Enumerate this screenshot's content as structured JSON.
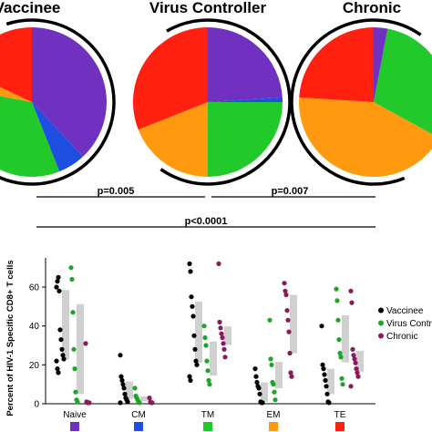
{
  "chart_data": [
    {
      "type": "pie",
      "panel": "pies",
      "titles": [
        "Vaccinee",
        "Virus Controller",
        "Chronic"
      ],
      "categories": [
        "Naive",
        "CM",
        "TM",
        "EM",
        "TE"
      ],
      "colors": [
        "#7030c0",
        "#1f4fe0",
        "#22c92a",
        "#ff9a10",
        "#ff2010"
      ],
      "series": [
        {
          "name": "Vaccinee",
          "values": [
            38,
            6,
            34,
            4,
            18
          ]
        },
        {
          "name": "Virus Controller",
          "values": [
            24,
            1,
            25,
            19,
            31
          ]
        },
        {
          "name": "Chronic",
          "values": [
            3,
            0,
            30,
            43,
            24
          ]
        }
      ],
      "comparisons": [
        {
          "label": "p=0.005",
          "between": [
            "Vaccinee",
            "Virus Controller"
          ]
        },
        {
          "label": "p=0.007",
          "between": [
            "Virus Controller",
            "Chronic"
          ]
        },
        {
          "label": "p<0.0001",
          "between": [
            "Vaccinee",
            "Chronic"
          ]
        }
      ]
    },
    {
      "type": "scatter",
      "panel": "dots",
      "ylabel": "Percent of HIV-1 Specific CD8+ T cells",
      "xlabel": "",
      "ylim": [
        0,
        75
      ],
      "yticks": [
        0,
        20,
        40,
        60
      ],
      "categories": [
        "Naive",
        "CM",
        "TM",
        "EM",
        "TE"
      ],
      "category_colors": [
        "#7030c0",
        "#1f4fe0",
        "#22c92a",
        "#ff9a10",
        "#ff2010"
      ],
      "series": [
        {
          "name": "Vaccinee",
          "color": "#000000",
          "points": [
            [
              60,
              63,
              65,
              58,
              38,
              33,
              28,
              25,
              23,
              22,
              18,
              16
            ],
            [
              25,
              14,
              12,
              10,
              8,
              5,
              3,
              2,
              1,
              0.5
            ],
            [
              72,
              68,
              55,
              50,
              45,
              35,
              28,
              22,
              20,
              14,
              12
            ],
            [
              18,
              14,
              11,
              9,
              8,
              5,
              1,
              0.5,
              0.5
            ],
            [
              40,
              20,
              18,
              15,
              12,
              9,
              5,
              1,
              0.5
            ]
          ]
        },
        {
          "name": "Virus Controller",
          "color": "#1aa62a",
          "points": [
            [
              70,
              64,
              47,
              28,
              18,
              6,
              2,
              1
            ],
            [
              8,
              4,
              3,
              2,
              1,
              0.5
            ],
            [
              40,
              34,
              30,
              22,
              17,
              12,
              10
            ],
            [
              43,
              23,
              20,
              11,
              10,
              6,
              2
            ],
            [
              59,
              53,
              43,
              33,
              26,
              24,
              13,
              10
            ]
          ]
        },
        {
          "name": "Chronic",
          "color": "#8a1a5a",
          "points": [
            [
              31,
              1,
              0.5,
              0.5,
              0.5
            ],
            [
              3,
              1,
              0.5,
              0.5
            ],
            [
              72,
              42,
              39,
              36,
              34,
              31,
              28,
              24
            ],
            [
              62,
              58,
              56,
              48,
              43,
              37,
              26,
              16,
              14
            ],
            [
              58,
              52,
              28,
              25,
              23,
              21,
              18,
              16,
              14,
              9
            ]
          ]
        }
      ],
      "legend_placement": "right"
    }
  ]
}
